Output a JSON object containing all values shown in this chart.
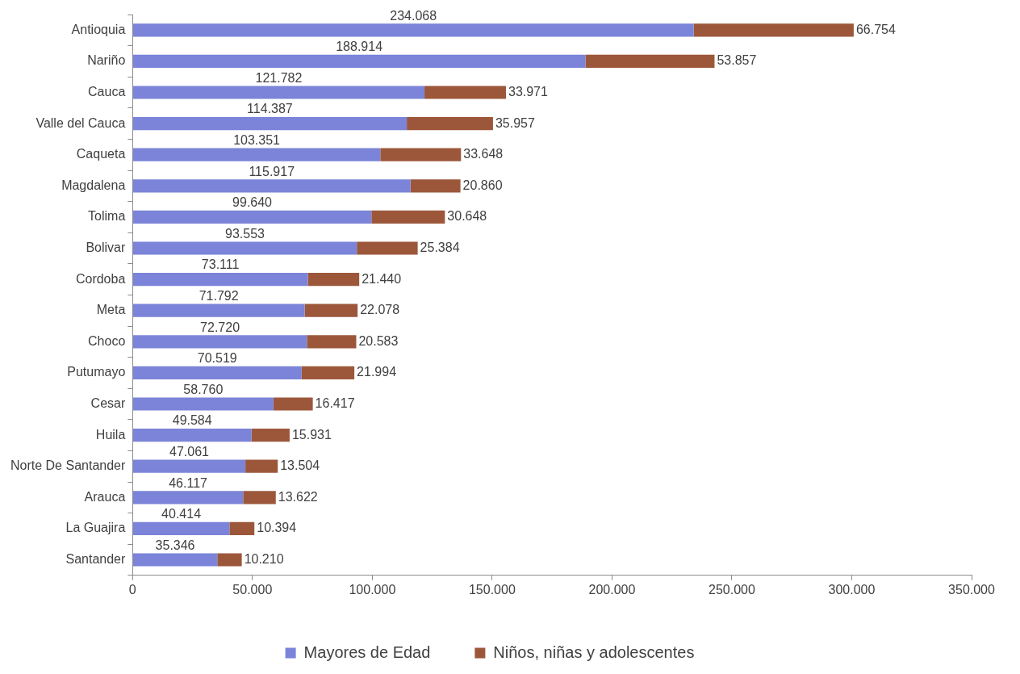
{
  "chart_data": {
    "type": "bar",
    "orientation": "horizontal",
    "stacked": true,
    "categories": [
      "Antioquia",
      "Nariño",
      "Cauca",
      "Valle del Cauca",
      "Caqueta",
      "Magdalena",
      "Tolima",
      "Bolivar",
      "Cordoba",
      "Meta",
      "Choco",
      "Putumayo",
      "Cesar",
      "Huila",
      "Norte De Santander",
      "Arauca",
      "La Guajira",
      "Santander"
    ],
    "series": [
      {
        "name": "Mayores de Edad",
        "color": "#7b84d8",
        "values": [
          234068,
          188914,
          121782,
          114387,
          103351,
          115917,
          99640,
          93553,
          73111,
          71792,
          72720,
          70519,
          58760,
          49584,
          47061,
          46117,
          40414,
          35346
        ],
        "value_labels": [
          "234.068",
          "188.914",
          "121.782",
          "114.387",
          "103.351",
          "115.917",
          "99.640",
          "93.553",
          "73.111",
          "71.792",
          "72.720",
          "70.519",
          "58.760",
          "49.584",
          "47.061",
          "46.117",
          "40.414",
          "35.346"
        ]
      },
      {
        "name": "Niños, niñas y adolescentes",
        "color": "#9c573a",
        "values": [
          66754,
          53857,
          33971,
          35957,
          33648,
          20860,
          30648,
          25384,
          21440,
          22078,
          20583,
          21994,
          16417,
          15931,
          13504,
          13622,
          10394,
          10210
        ],
        "value_labels": [
          "66.754",
          "53.857",
          "33.971",
          "35.957",
          "33.648",
          "20.860",
          "30.648",
          "25.384",
          "21.440",
          "22.078",
          "20.583",
          "21.994",
          "16.417",
          "15.931",
          "13.504",
          "13.622",
          "10.394",
          "10.210"
        ]
      }
    ],
    "xlim": [
      0,
      350000
    ],
    "xticks": [
      0,
      {
        "value": 50000,
        "label": "50.000"
      },
      {
        "value": 100000,
        "label": "100.000"
      },
      {
        "value": 150000,
        "label": "150.000"
      },
      {
        "value": 200000,
        "label": "200.000"
      },
      {
        "value": 250000,
        "label": "250.000"
      },
      {
        "value": 300000,
        "label": "300.000"
      },
      {
        "value": 350000,
        "label": "350.000"
      }
    ],
    "grid": false,
    "legend": "bottom"
  }
}
